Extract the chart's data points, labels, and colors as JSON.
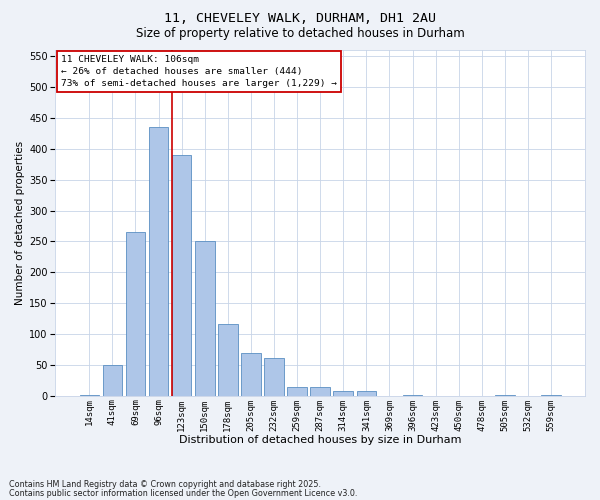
{
  "title1": "11, CHEVELEY WALK, DURHAM, DH1 2AU",
  "title2": "Size of property relative to detached houses in Durham",
  "xlabel": "Distribution of detached houses by size in Durham",
  "ylabel": "Number of detached properties",
  "footnote1": "Contains HM Land Registry data © Crown copyright and database right 2025.",
  "footnote2": "Contains public sector information licensed under the Open Government Licence v3.0.",
  "bar_labels": [
    "14sqm",
    "41sqm",
    "69sqm",
    "96sqm",
    "123sqm",
    "150sqm",
    "178sqm",
    "205sqm",
    "232sqm",
    "259sqm",
    "287sqm",
    "314sqm",
    "341sqm",
    "369sqm",
    "396sqm",
    "423sqm",
    "450sqm",
    "478sqm",
    "505sqm",
    "532sqm",
    "559sqm"
  ],
  "bar_values": [
    2,
    50,
    265,
    435,
    390,
    250,
    117,
    69,
    62,
    15,
    14,
    8,
    7,
    0,
    2,
    0,
    0,
    0,
    1,
    0,
    2
  ],
  "bar_color": "#aec6e8",
  "bar_edge_color": "#5a8fc2",
  "vline_x": 3.57,
  "vline_color": "#cc0000",
  "ylim": [
    0,
    560
  ],
  "yticks": [
    0,
    50,
    100,
    150,
    200,
    250,
    300,
    350,
    400,
    450,
    500,
    550
  ],
  "annotation_text": "11 CHEVELEY WALK: 106sqm\n← 26% of detached houses are smaller (444)\n73% of semi-detached houses are larger (1,229) →",
  "bg_color": "#eef2f8",
  "plot_bg_color": "#ffffff",
  "grid_color": "#c8d4e8"
}
